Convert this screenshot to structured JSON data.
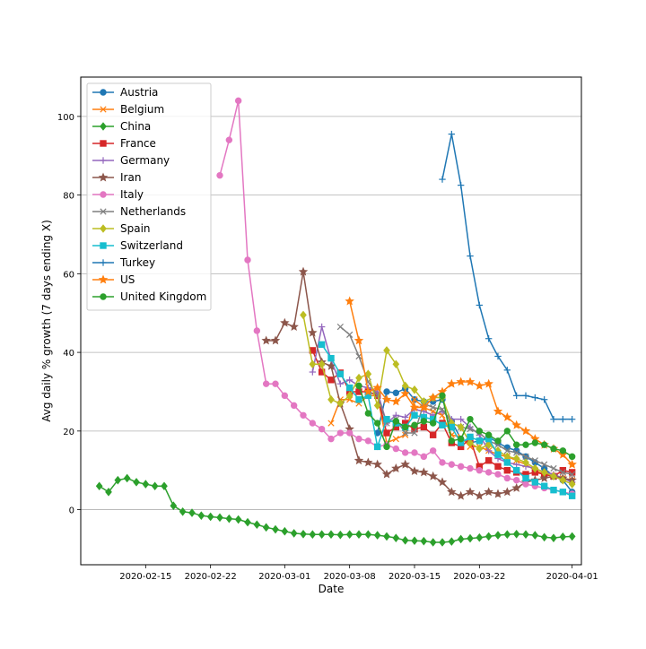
{
  "chart_data": {
    "type": "line",
    "title": "",
    "xlabel": "Date",
    "ylabel": "Avg daily % growth (7 days ending X)",
    "xlim": [
      "2020-02-08",
      "2020-04-02"
    ],
    "ylim": [
      -14,
      110
    ],
    "x_ticks": [
      "2020-02-15",
      "2020-02-22",
      "2020-03-01",
      "2020-03-08",
      "2020-03-15",
      "2020-03-22",
      "2020-04-01"
    ],
    "y_ticks": [
      0,
      20,
      40,
      60,
      80,
      100
    ],
    "grid": "horizontal",
    "legend_position": "upper-left",
    "series": [
      {
        "name": "Austria",
        "color": "#1f77b4",
        "marker": "circle",
        "x": [
          "2020-03-11",
          "2020-03-12",
          "2020-03-13",
          "2020-03-14",
          "2020-03-15",
          "2020-03-16",
          "2020-03-17",
          "2020-03-18",
          "2020-03-19",
          "2020-03-20",
          "2020-03-21",
          "2020-03-22",
          "2020-03-23",
          "2020-03-24",
          "2020-03-25",
          "2020-03-26",
          "2020-03-27",
          "2020-03-28",
          "2020-03-29",
          "2020-03-30",
          "2020-03-31",
          "2020-04-01"
        ],
        "y": [
          19.5,
          30,
          29.7,
          30.8,
          28,
          27.5,
          27.5,
          28,
          22.5,
          18,
          17,
          17.5,
          18.5,
          17,
          15.8,
          15,
          13.5,
          12,
          10.5,
          8.5,
          7.5,
          4.5
        ]
      },
      {
        "name": "Belgium",
        "color": "#ff7f0e",
        "marker": "x",
        "x": [
          "2020-03-06",
          "2020-03-07",
          "2020-03-08",
          "2020-03-09",
          "2020-03-10",
          "2020-03-11",
          "2020-03-12",
          "2020-03-13",
          "2020-03-14",
          "2020-03-15",
          "2020-03-16",
          "2020-03-17",
          "2020-03-18",
          "2020-03-19",
          "2020-03-20",
          "2020-03-21",
          "2020-03-22",
          "2020-03-23",
          "2020-03-24",
          "2020-03-25",
          "2020-03-26",
          "2020-03-27",
          "2020-03-28",
          "2020-03-29",
          "2020-03-30",
          "2020-03-31",
          "2020-04-01"
        ],
        "y": [
          22,
          28,
          28,
          27,
          29,
          29,
          17,
          18,
          19,
          28,
          26,
          25,
          24,
          19,
          18.5,
          16,
          16,
          15,
          14,
          13.5,
          12.5,
          11.5,
          10,
          9,
          8.5,
          8,
          7.5
        ]
      },
      {
        "name": "China",
        "color": "#2ca02c",
        "marker": "diamond",
        "x": [
          "2020-02-10",
          "2020-02-11",
          "2020-02-12",
          "2020-02-13",
          "2020-02-14",
          "2020-02-15",
          "2020-02-16",
          "2020-02-17",
          "2020-02-18",
          "2020-02-19",
          "2020-02-20",
          "2020-02-21",
          "2020-02-22",
          "2020-02-23",
          "2020-02-24",
          "2020-02-25",
          "2020-02-26",
          "2020-02-27",
          "2020-02-28",
          "2020-02-29",
          "2020-03-01",
          "2020-03-02",
          "2020-03-03",
          "2020-03-04",
          "2020-03-05",
          "2020-03-06",
          "2020-03-07",
          "2020-03-08",
          "2020-03-09",
          "2020-03-10",
          "2020-03-11",
          "2020-03-12",
          "2020-03-13",
          "2020-03-14",
          "2020-03-15",
          "2020-03-16",
          "2020-03-17",
          "2020-03-18",
          "2020-03-19",
          "2020-03-20",
          "2020-03-21",
          "2020-03-22",
          "2020-03-23",
          "2020-03-24",
          "2020-03-25",
          "2020-03-26",
          "2020-03-27",
          "2020-03-28",
          "2020-03-29",
          "2020-03-30",
          "2020-03-31",
          "2020-04-01"
        ],
        "y": [
          6,
          4.5,
          7.5,
          8,
          7,
          6.5,
          6,
          6,
          1,
          -0.5,
          -0.8,
          -1.5,
          -1.8,
          -2,
          -2.3,
          -2.5,
          -3.2,
          -3.8,
          -4.5,
          -5,
          -5.5,
          -6,
          -6.2,
          -6.3,
          -6.3,
          -6.3,
          -6.4,
          -6.3,
          -6.3,
          -6.3,
          -6.5,
          -6.8,
          -7.2,
          -7.8,
          -7.9,
          -8.0,
          -8.3,
          -8.3,
          -8.1,
          -7.5,
          -7.3,
          -7.1,
          -6.8,
          -6.5,
          -6.3,
          -6.2,
          -6.3,
          -6.5,
          -7.0,
          -7.2,
          -6.9,
          -6.8
        ]
      },
      {
        "name": "France",
        "color": "#d62728",
        "marker": "square",
        "x": [
          "2020-03-04",
          "2020-03-05",
          "2020-03-06",
          "2020-03-07",
          "2020-03-08",
          "2020-03-09",
          "2020-03-10",
          "2020-03-11",
          "2020-03-12",
          "2020-03-13",
          "2020-03-14",
          "2020-03-15",
          "2020-03-16",
          "2020-03-17",
          "2020-03-18",
          "2020-03-19",
          "2020-03-20",
          "2020-03-21",
          "2020-03-22",
          "2020-03-23",
          "2020-03-24",
          "2020-03-25",
          "2020-03-26",
          "2020-03-27",
          "2020-03-28",
          "2020-03-29",
          "2020-03-30",
          "2020-03-31",
          "2020-04-01"
        ],
        "y": [
          40.5,
          35,
          33,
          34.8,
          30,
          30,
          30,
          29,
          19.5,
          21,
          22,
          20.5,
          21,
          19,
          22,
          17,
          16,
          18,
          11,
          12.5,
          11,
          10,
          9.5,
          9,
          9.5,
          9,
          8.5,
          10,
          9.5
        ]
      },
      {
        "name": "Germany",
        "color": "#9467bd",
        "marker": "plus",
        "x": [
          "2020-03-04",
          "2020-03-05",
          "2020-03-06",
          "2020-03-07",
          "2020-03-08",
          "2020-03-09",
          "2020-03-10",
          "2020-03-11",
          "2020-03-12",
          "2020-03-13",
          "2020-03-14",
          "2020-03-15",
          "2020-03-16",
          "2020-03-17",
          "2020-03-18",
          "2020-03-19",
          "2020-03-20",
          "2020-03-21",
          "2020-03-22",
          "2020-03-23",
          "2020-03-24",
          "2020-03-25",
          "2020-03-26",
          "2020-03-27",
          "2020-03-28",
          "2020-03-29",
          "2020-03-30",
          "2020-03-31",
          "2020-04-01"
        ],
        "y": [
          35,
          46.5,
          38,
          32,
          33,
          31.5,
          31,
          30,
          22,
          24,
          23.5,
          25.5,
          25,
          24,
          25,
          23,
          23,
          21,
          19,
          15,
          13,
          12,
          11.5,
          11,
          10.5,
          9.5,
          9,
          8,
          7
        ]
      },
      {
        "name": "Iran",
        "color": "#8c564b",
        "marker": "star",
        "x": [
          "2020-02-28",
          "2020-02-29",
          "2020-03-01",
          "2020-03-02",
          "2020-03-03",
          "2020-03-04",
          "2020-03-05",
          "2020-03-06",
          "2020-03-07",
          "2020-03-08",
          "2020-03-09",
          "2020-03-10",
          "2020-03-11",
          "2020-03-12",
          "2020-03-13",
          "2020-03-14",
          "2020-03-15",
          "2020-03-16",
          "2020-03-17",
          "2020-03-18",
          "2020-03-19",
          "2020-03-20",
          "2020-03-21",
          "2020-03-22",
          "2020-03-23",
          "2020-03-24",
          "2020-03-25",
          "2020-03-26",
          "2020-03-27",
          "2020-03-28",
          "2020-03-29",
          "2020-03-30",
          "2020-03-31",
          "2020-04-01"
        ],
        "y": [
          43,
          43,
          47.5,
          46.5,
          60.5,
          45,
          37.5,
          36.5,
          27,
          20.5,
          12.5,
          12,
          11.5,
          9,
          10.5,
          11.5,
          9.8,
          9.5,
          8.5,
          7,
          4.5,
          3.5,
          4.5,
          3.5,
          4.5,
          4,
          4.5,
          5.5,
          7,
          7.5,
          8,
          8.5,
          8,
          7.5
        ]
      },
      {
        "name": "Italy",
        "color": "#e377c2",
        "marker": "circle",
        "x": [
          "2020-02-23",
          "2020-02-24",
          "2020-02-25",
          "2020-02-26",
          "2020-02-27",
          "2020-02-28",
          "2020-02-29",
          "2020-03-01",
          "2020-03-02",
          "2020-03-03",
          "2020-03-04",
          "2020-03-05",
          "2020-03-06",
          "2020-03-07",
          "2020-03-08",
          "2020-03-09",
          "2020-03-10",
          "2020-03-11",
          "2020-03-12",
          "2020-03-13",
          "2020-03-14",
          "2020-03-15",
          "2020-03-16",
          "2020-03-17",
          "2020-03-18",
          "2020-03-19",
          "2020-03-20",
          "2020-03-21",
          "2020-03-22",
          "2020-03-23",
          "2020-03-24",
          "2020-03-25",
          "2020-03-26",
          "2020-03-27",
          "2020-03-28",
          "2020-03-29",
          "2020-03-30",
          "2020-03-31",
          "2020-04-01"
        ],
        "y": [
          85,
          94,
          104,
          63.5,
          45.5,
          32,
          32,
          29,
          26.5,
          24,
          22,
          20.5,
          18,
          19.5,
          19.5,
          18,
          17.5,
          16,
          16.5,
          15.5,
          14.5,
          14.5,
          13.5,
          15,
          12,
          11.5,
          11,
          10.5,
          10,
          9.5,
          9,
          8,
          7.5,
          6.5,
          6,
          5.5,
          5,
          4.5,
          4
        ]
      },
      {
        "name": "Netherlands",
        "color": "#7f7f7f",
        "marker": "x",
        "x": [
          "2020-03-07",
          "2020-03-08",
          "2020-03-09",
          "2020-03-10",
          "2020-03-11",
          "2020-03-12",
          "2020-03-13",
          "2020-03-14",
          "2020-03-15",
          "2020-03-16",
          "2020-03-17",
          "2020-03-18",
          "2020-03-19",
          "2020-03-20",
          "2020-03-21",
          "2020-03-22",
          "2020-03-23",
          "2020-03-24",
          "2020-03-25",
          "2020-03-26",
          "2020-03-27",
          "2020-03-28",
          "2020-03-29",
          "2020-03-30",
          "2020-03-31",
          "2020-04-01"
        ],
        "y": [
          46.5,
          44.5,
          39,
          32.5,
          29,
          22,
          23,
          19.5,
          19.5,
          27,
          26,
          25.5,
          22,
          21,
          20.5,
          19.5,
          17.5,
          16.5,
          15,
          14.5,
          13.5,
          12.5,
          11.5,
          10.5,
          9.5,
          9
        ]
      },
      {
        "name": "Spain",
        "color": "#bcbd22",
        "marker": "diamond",
        "x": [
          "2020-03-03",
          "2020-03-04",
          "2020-03-05",
          "2020-03-06",
          "2020-03-07",
          "2020-03-08",
          "2020-03-09",
          "2020-03-10",
          "2020-03-11",
          "2020-03-12",
          "2020-03-13",
          "2020-03-14",
          "2020-03-15",
          "2020-03-16",
          "2020-03-17",
          "2020-03-18",
          "2020-03-19",
          "2020-03-20",
          "2020-03-21",
          "2020-03-22",
          "2020-03-23",
          "2020-03-24",
          "2020-03-25",
          "2020-03-26",
          "2020-03-27",
          "2020-03-28",
          "2020-03-29",
          "2020-03-30",
          "2020-03-31",
          "2020-04-01"
        ],
        "y": [
          49.5,
          37,
          37,
          28,
          27,
          29,
          33.5,
          34.5,
          26.5,
          40.5,
          37,
          31.5,
          30.5,
          27.5,
          28.5,
          28.5,
          22,
          21,
          17,
          15.5,
          16.5,
          15,
          13.5,
          13,
          12,
          10.5,
          9.5,
          8.5,
          7.5,
          6.5
        ]
      },
      {
        "name": "Switzerland",
        "color": "#17becf",
        "marker": "square",
        "x": [
          "2020-03-05",
          "2020-03-06",
          "2020-03-07",
          "2020-03-08",
          "2020-03-09",
          "2020-03-10",
          "2020-03-11",
          "2020-03-12",
          "2020-03-13",
          "2020-03-14",
          "2020-03-15",
          "2020-03-16",
          "2020-03-17",
          "2020-03-18",
          "2020-03-19",
          "2020-03-20",
          "2020-03-21",
          "2020-03-22",
          "2020-03-23",
          "2020-03-24",
          "2020-03-25",
          "2020-03-26",
          "2020-03-27",
          "2020-03-28",
          "2020-03-29",
          "2020-03-30",
          "2020-03-31",
          "2020-04-01"
        ],
        "y": [
          42,
          38.5,
          34.5,
          31,
          28,
          29,
          16,
          23,
          22,
          21,
          24,
          23.5,
          23,
          21.5,
          21,
          17,
          18.5,
          17.5,
          18,
          14,
          12,
          10,
          8,
          7,
          6,
          5,
          4.5,
          3.5
        ]
      },
      {
        "name": "Turkey",
        "color": "#1f77b4",
        "marker": "plus",
        "x": [
          "2020-03-18",
          "2020-03-19",
          "2020-03-20",
          "2020-03-21",
          "2020-03-22",
          "2020-03-23",
          "2020-03-24",
          "2020-03-25",
          "2020-03-26",
          "2020-03-27",
          "2020-03-28",
          "2020-03-29",
          "2020-03-30",
          "2020-03-31",
          "2020-04-01"
        ],
        "y": [
          84,
          95.5,
          82.5,
          64.5,
          52,
          43.5,
          39,
          35.5,
          29,
          29,
          28.5,
          28,
          23,
          23,
          23
        ]
      },
      {
        "name": "US",
        "color": "#ff7f0e",
        "marker": "star",
        "x": [
          "2020-03-08",
          "2020-03-09",
          "2020-03-10",
          "2020-03-11",
          "2020-03-12",
          "2020-03-13",
          "2020-03-14",
          "2020-03-15",
          "2020-03-16",
          "2020-03-17",
          "2020-03-18",
          "2020-03-19",
          "2020-03-20",
          "2020-03-21",
          "2020-03-22",
          "2020-03-23",
          "2020-03-24",
          "2020-03-25",
          "2020-03-26",
          "2020-03-27",
          "2020-03-28",
          "2020-03-29",
          "2020-03-30",
          "2020-03-31",
          "2020-04-01"
        ],
        "y": [
          53,
          43,
          30,
          31,
          28,
          27.5,
          29.5,
          26,
          26,
          28.5,
          30,
          32,
          32.5,
          32.5,
          31.5,
          32,
          25,
          23.5,
          21.5,
          20,
          18,
          16.5,
          15.5,
          14,
          11.5
        ]
      },
      {
        "name": "United Kingdom",
        "color": "#2ca02c",
        "marker": "circle",
        "x": [
          "2020-03-09",
          "2020-03-10",
          "2020-03-11",
          "2020-03-12",
          "2020-03-13",
          "2020-03-14",
          "2020-03-15",
          "2020-03-16",
          "2020-03-17",
          "2020-03-18",
          "2020-03-19",
          "2020-03-20",
          "2020-03-21",
          "2020-03-22",
          "2020-03-23",
          "2020-03-24",
          "2020-03-25",
          "2020-03-26",
          "2020-03-27",
          "2020-03-28",
          "2020-03-29",
          "2020-03-30",
          "2020-03-31",
          "2020-04-01"
        ],
        "y": [
          31.5,
          24.5,
          22,
          16,
          22.5,
          21,
          21.5,
          22.5,
          22,
          29,
          17.5,
          18,
          23,
          20,
          19,
          17.5,
          20,
          16.5,
          16.5,
          17,
          16.5,
          15.5,
          15,
          13.5
        ]
      }
    ]
  }
}
